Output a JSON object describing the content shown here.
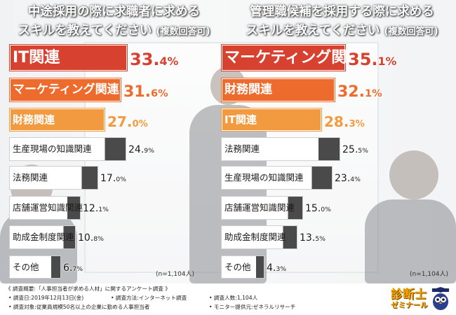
{
  "titles": {
    "left_line1": "中途採用の際に求職者に求める",
    "left_line2": "スキルを教えてください",
    "left_suffix": "(複数回答可)",
    "right_line1": "管理職候補を採用する際に求める",
    "right_line2": "スキルを教えてください",
    "right_suffix": "(複数回答可)"
  },
  "colors": {
    "red": "#d6422f",
    "orange": "#ee6b2e",
    "light_orange": "#f29a3f",
    "gray": "#4a4a4a",
    "white": "#ffffff"
  },
  "chart_data": [
    {
      "type": "bar",
      "title": "中途採用の際に求職者に求めるスキルを教えてください(複数回答可)",
      "categories": [
        "IT関連",
        "マーケティング関連",
        "財務関連",
        "生産現場の知識関連",
        "法務関連",
        "店舗運営知識関連",
        "助成金制度関連",
        "その他"
      ],
      "values": [
        33.4,
        31.6,
        27.0,
        24.9,
        17.0,
        12.1,
        10.8,
        6.7
      ],
      "value_labels_int": [
        "33.",
        "31.",
        "27.",
        "24.",
        "17.",
        "12.",
        "10.",
        "6."
      ],
      "value_labels_dec": [
        "4%",
        "6%",
        "0%",
        "9%",
        "0%",
        "1%",
        "8%",
        "7%"
      ],
      "unit": "%",
      "note": "(n=1,104人)"
    },
    {
      "type": "bar",
      "title": "管理職候補を採用する際に求めるスキルを教えてください(複数回答可)",
      "categories": [
        "マーケティング関連",
        "財務関連",
        "IT関連",
        "法務関連",
        "生産現場の知識関連",
        "店舗運営知識関連",
        "助成金制度関連",
        "その他"
      ],
      "values": [
        35.1,
        32.1,
        28.3,
        25.5,
        23.4,
        15.0,
        13.5,
        4.3
      ],
      "value_labels_int": [
        "35.",
        "32.",
        "28.",
        "25.",
        "23.",
        "15.",
        "13.",
        "4."
      ],
      "value_labels_dec": [
        "1%",
        "1%",
        "3%",
        "5%",
        "4%",
        "0%",
        "5%",
        "3%"
      ],
      "unit": "%",
      "note": "(n=1,104人)"
    }
  ],
  "footer": {
    "line1": "《 調査概要:「人事担当者が求める人材」に関するアンケート調査 》",
    "line2_a": "• 調査日:2019年12月13日(金)",
    "line2_b": "• 調査方法:インターネット調査",
    "line2_c": "• 調査人数:1,104人",
    "line3_a": "• 調査対象:従業員規模50名以上の企業に勤める人事担当者",
    "line3_b": "• モニター提供元:ゼネラルリサーチ"
  },
  "logo": {
    "line1": "診断士",
    "line2": "ゼミナール"
  }
}
